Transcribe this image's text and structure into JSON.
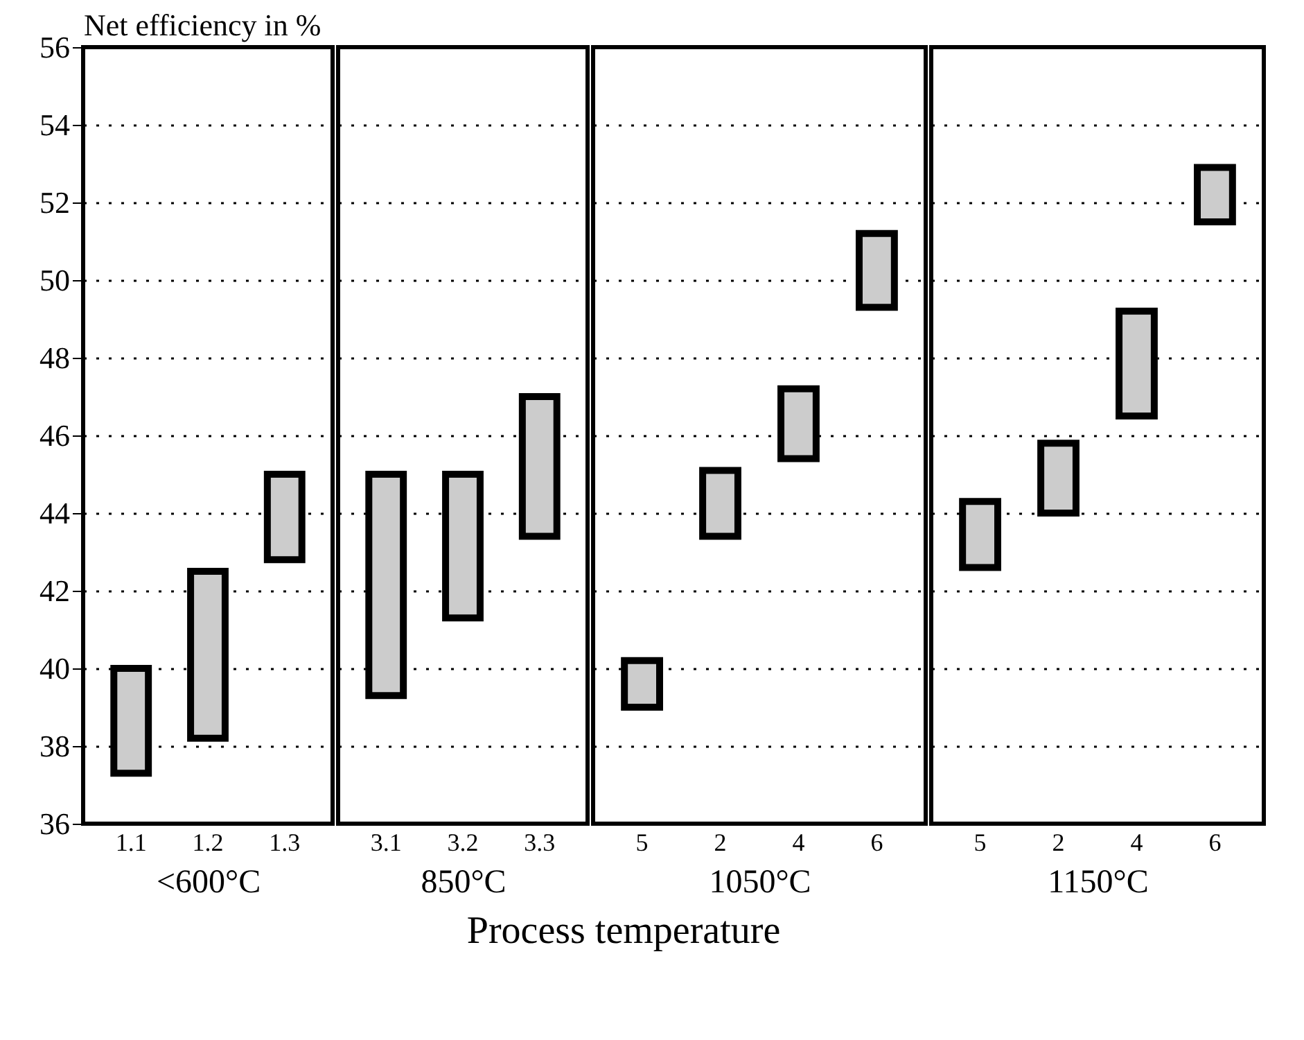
{
  "chart_data": [
    {
      "type": "bar",
      "ylabel": "Net efficiency in %",
      "xlabel": "<600°C",
      "annotations": [
        "Process temperature"
      ],
      "categories": [
        "1.1",
        "1.2",
        "1.3"
      ],
      "base": [
        37.3,
        38.2,
        42.8
      ],
      "values": [
        2.7,
        4.3,
        2.2
      ],
      "color": "#cccccc",
      "ylim": [
        36,
        56
      ],
      "yticks": [
        36,
        38,
        40,
        42,
        44,
        46,
        48,
        50,
        52,
        54,
        56
      ],
      "grid": "y"
    },
    {
      "type": "bar",
      "xlabel": "850°C",
      "categories": [
        "3.1",
        "3.2",
        "3.3"
      ],
      "base": [
        39.3,
        41.3,
        43.4
      ],
      "values": [
        5.7,
        3.7,
        3.6
      ],
      "color": "#cccccc",
      "ylim": [
        36,
        56
      ],
      "yticks": [
        36,
        38,
        40,
        42,
        44,
        46,
        48,
        50,
        52,
        54,
        56
      ],
      "grid": "y",
      "tick_labels": "x"
    },
    {
      "type": "bar",
      "xlabel": "1050°C",
      "categories": [
        "5",
        "2",
        "4",
        "6"
      ],
      "base": [
        39.0,
        43.4,
        45.4,
        49.3
      ],
      "values": [
        1.2,
        1.7,
        1.8,
        1.9
      ],
      "color": "#cccccc",
      "ylim": [
        36,
        56
      ],
      "yticks": [
        36,
        38,
        40,
        42,
        44,
        46,
        48,
        50,
        52,
        54,
        56
      ],
      "grid": "y",
      "tick_labels": "x"
    },
    {
      "type": "bar",
      "xlabel": "1150°C",
      "categories": [
        "5",
        "2",
        "4",
        "6"
      ],
      "base": [
        42.6,
        44.0,
        46.5,
        51.5
      ],
      "values": [
        1.7,
        1.8,
        2.7,
        1.4
      ],
      "color": "#cccccc",
      "ylim": [
        36,
        56
      ],
      "yticks": [
        36,
        38,
        40,
        42,
        44,
        46,
        48,
        50,
        52,
        54,
        56
      ],
      "grid": "y",
      "tick_labels": "x"
    }
  ]
}
